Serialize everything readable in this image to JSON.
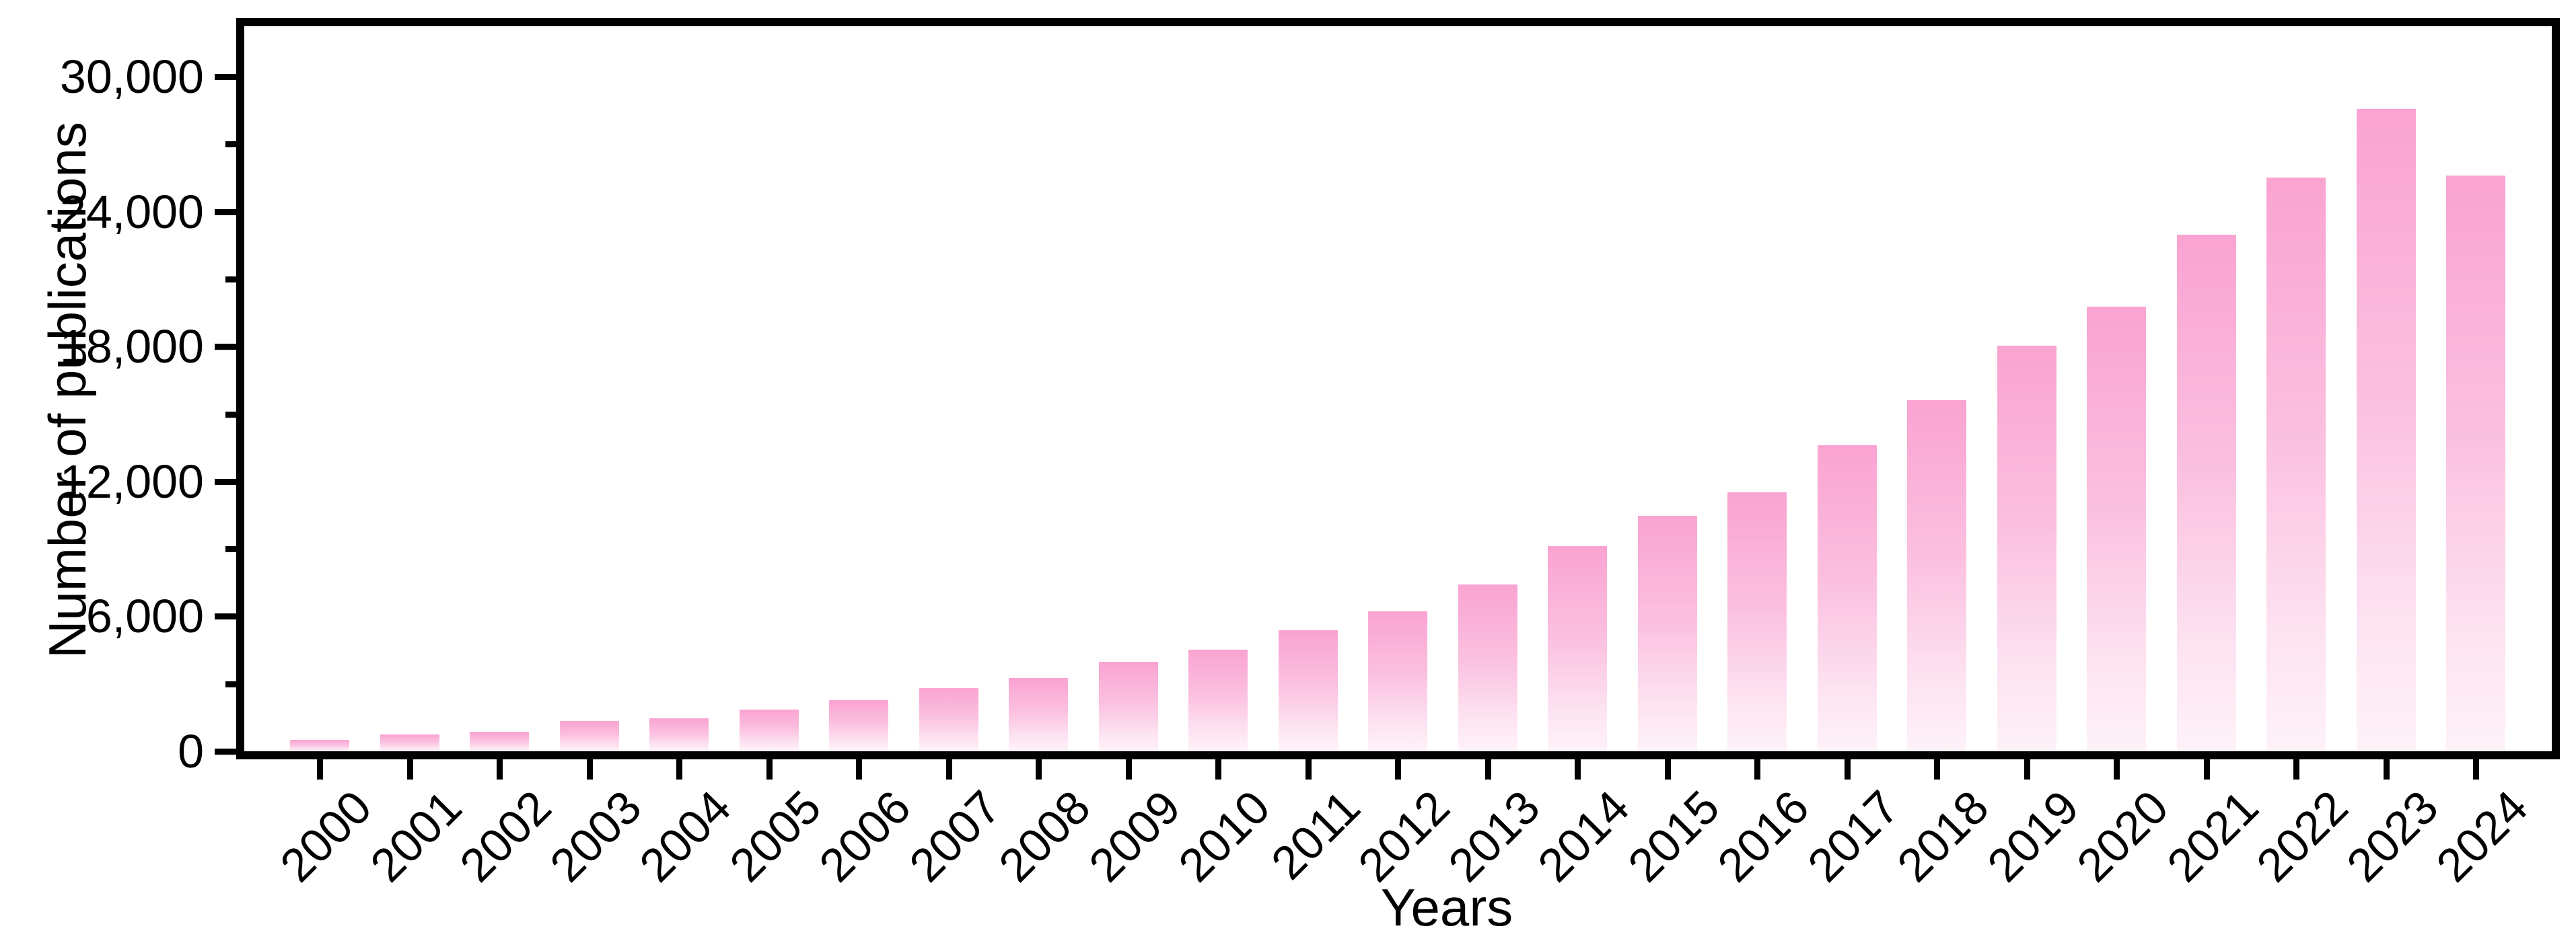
{
  "chart_data": {
    "type": "bar",
    "title": "",
    "xlabel": "Years",
    "ylabel": "Number of publications",
    "categories": [
      "2000",
      "2001",
      "2002",
      "2003",
      "2004",
      "2005",
      "2006",
      "2007",
      "2008",
      "2009",
      "2010",
      "2011",
      "2012",
      "2013",
      "2014",
      "2015",
      "2016",
      "2017",
      "2018",
      "2019",
      "2020",
      "2021",
      "2022",
      "2023",
      "2024"
    ],
    "values": [
      520,
      750,
      880,
      1340,
      1480,
      1860,
      2260,
      2810,
      3260,
      3980,
      4520,
      5390,
      6220,
      7420,
      9130,
      10470,
      11520,
      13610,
      15620,
      18040,
      19780,
      22980,
      25520,
      28570,
      25610
    ],
    "ylim": [
      0,
      32250
    ],
    "y_major_ticks": [
      {
        "value": 0,
        "label": "0"
      },
      {
        "value": 6000,
        "label": "6,000"
      },
      {
        "value": 12000,
        "label": "12,000"
      },
      {
        "value": 18000,
        "label": "18,000"
      },
      {
        "value": 24000,
        "label": "24,000"
      },
      {
        "value": 30000,
        "label": "30,000"
      }
    ],
    "y_minor_ticks": [
      3000,
      9000,
      15000,
      21000,
      27000
    ],
    "grid": false,
    "legend": "none",
    "colors": {
      "bar_gradient_top": "#FAA3D1",
      "bar_gradient_upper_mid": "#FBC0E0",
      "bar_gradient_lower_mid": "#FDE3F1",
      "bar_gradient_bottom": "#FEF2F9",
      "axis": "#000000",
      "background": "#FFFFFF",
      "text": "#000000"
    }
  }
}
